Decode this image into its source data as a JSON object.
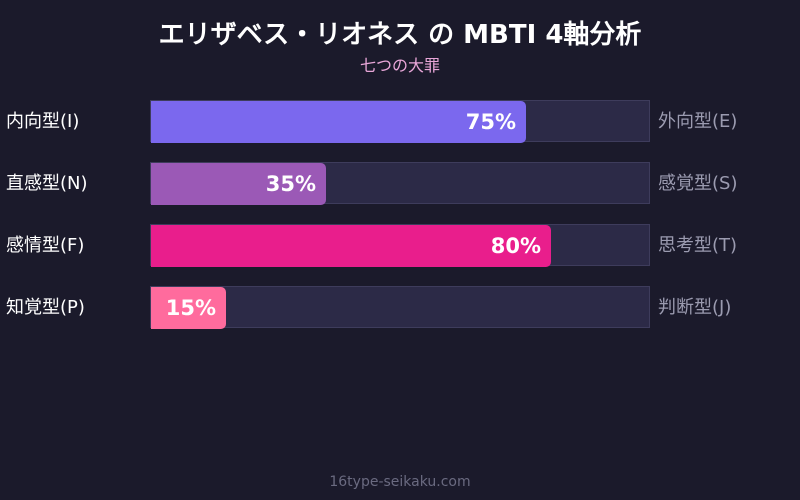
{
  "chart_data": {
    "type": "bar",
    "orientation": "horizontal",
    "title": "エリザベス・リオネス の MBTI 4軸分析",
    "subtitle": "七つの大罪",
    "xlim": [
      0,
      100
    ],
    "bars": [
      {
        "left_label": "内向型(I)",
        "right_label": "外向型(E)",
        "value": 75,
        "value_label": "75%",
        "color": "#7b68ee"
      },
      {
        "left_label": "直感型(N)",
        "right_label": "感覚型(S)",
        "value": 35,
        "value_label": "35%",
        "color": "#9b59b6"
      },
      {
        "left_label": "感情型(F)",
        "right_label": "思考型(T)",
        "value": 80,
        "value_label": "80%",
        "color": "#e91e8c"
      },
      {
        "left_label": "知覚型(P)",
        "right_label": "判断型(J)",
        "value": 15,
        "value_label": "15%",
        "color": "#ff6b9d"
      }
    ]
  },
  "footer": "16type-seikaku.com"
}
